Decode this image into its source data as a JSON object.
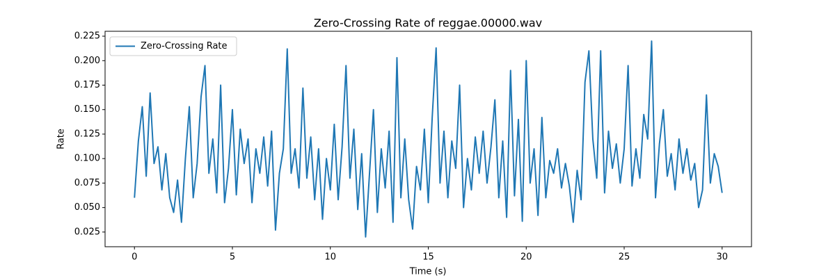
{
  "chart_data": {
    "type": "line",
    "title": "Zero-Crossing Rate of reggae.00000.wav",
    "xlabel": "Time (s)",
    "ylabel": "Rate",
    "x": [
      0,
      0.2,
      0.4,
      0.6,
      0.8,
      1,
      1.2,
      1.4,
      1.6,
      1.8,
      2,
      2.2,
      2.4,
      2.6,
      2.8,
      3,
      3.2,
      3.4,
      3.6,
      3.8,
      4,
      4.2,
      4.4,
      4.6,
      4.8,
      5,
      5.2,
      5.4,
      5.6,
      5.8,
      6,
      6.2,
      6.4,
      6.6,
      6.8,
      7,
      7.2,
      7.4,
      7.6,
      7.8,
      8,
      8.2,
      8.4,
      8.6,
      8.8,
      9,
      9.2,
      9.4,
      9.6,
      9.8,
      10,
      10.2,
      10.4,
      10.6,
      10.8,
      11,
      11.2,
      11.4,
      11.6,
      11.8,
      12,
      12.2,
      12.4,
      12.6,
      12.8,
      13,
      13.2,
      13.4,
      13.6,
      13.8,
      14,
      14.2,
      14.4,
      14.6,
      14.8,
      15,
      15.2,
      15.4,
      15.6,
      15.8,
      16,
      16.2,
      16.4,
      16.6,
      16.8,
      17,
      17.2,
      17.4,
      17.6,
      17.8,
      18,
      18.2,
      18.4,
      18.6,
      18.8,
      19,
      19.2,
      19.4,
      19.6,
      19.8,
      20,
      20.2,
      20.4,
      20.6,
      20.8,
      21,
      21.2,
      21.4,
      21.6,
      21.8,
      22,
      22.2,
      22.4,
      22.6,
      22.8,
      23,
      23.2,
      23.4,
      23.6,
      23.8,
      24,
      24.2,
      24.4,
      24.6,
      24.8,
      25,
      25.2,
      25.4,
      25.6,
      25.8,
      26,
      26.2,
      26.4,
      26.6,
      26.8,
      27,
      27.2,
      27.4,
      27.6,
      27.8,
      28,
      28.2,
      28.4,
      28.6,
      28.8,
      29,
      29.2,
      29.4,
      29.6,
      29.8,
      30
    ],
    "series": [
      {
        "name": "Zero-Crossing Rate",
        "color": "#1f77b4",
        "values": [
          0.06,
          0.118,
          0.153,
          0.082,
          0.167,
          0.095,
          0.112,
          0.068,
          0.105,
          0.06,
          0.045,
          0.078,
          0.035,
          0.1,
          0.153,
          0.06,
          0.095,
          0.163,
          0.195,
          0.085,
          0.12,
          0.065,
          0.175,
          0.055,
          0.09,
          0.15,
          0.063,
          0.13,
          0.095,
          0.12,
          0.055,
          0.11,
          0.085,
          0.122,
          0.072,
          0.128,
          0.027,
          0.085,
          0.11,
          0.212,
          0.085,
          0.11,
          0.07,
          0.172,
          0.08,
          0.122,
          0.058,
          0.11,
          0.038,
          0.1,
          0.068,
          0.135,
          0.058,
          0.112,
          0.195,
          0.08,
          0.13,
          0.048,
          0.105,
          0.02,
          0.085,
          0.15,
          0.045,
          0.11,
          0.07,
          0.128,
          0.035,
          0.203,
          0.06,
          0.12,
          0.058,
          0.028,
          0.092,
          0.068,
          0.13,
          0.055,
          0.142,
          0.213,
          0.075,
          0.128,
          0.06,
          0.118,
          0.09,
          0.175,
          0.05,
          0.1,
          0.068,
          0.122,
          0.085,
          0.128,
          0.075,
          0.112,
          0.16,
          0.06,
          0.118,
          0.04,
          0.19,
          0.062,
          0.14,
          0.036,
          0.2,
          0.075,
          0.11,
          0.042,
          0.142,
          0.06,
          0.098,
          0.085,
          0.11,
          0.07,
          0.095,
          0.072,
          0.035,
          0.088,
          0.058,
          0.178,
          0.21,
          0.12,
          0.08,
          0.21,
          0.065,
          0.128,
          0.09,
          0.115,
          0.075,
          0.11,
          0.195,
          0.072,
          0.11,
          0.08,
          0.145,
          0.12,
          0.22,
          0.06,
          0.115,
          0.15,
          0.082,
          0.105,
          0.068,
          0.12,
          0.085,
          0.11,
          0.078,
          0.095,
          0.05,
          0.068,
          0.165,
          0.075,
          0.105,
          0.092,
          0.065
        ]
      }
    ],
    "xlim": [
      -1.5,
      31.5
    ],
    "xticks": [
      0,
      5,
      10,
      15,
      20,
      25,
      30
    ],
    "ylim": [
      0.01,
      0.23
    ],
    "yticks": [
      0.025,
      {
        "value": 0.05,
        "label": "0.050"
      },
      0.075,
      {
        "value": 0.1,
        "label": "0.100"
      },
      0.125,
      {
        "value": 0.15,
        "label": "0.150"
      },
      0.175,
      {
        "value": 0.2,
        "label": "0.200"
      },
      0.225
    ],
    "legend": "upper left"
  }
}
